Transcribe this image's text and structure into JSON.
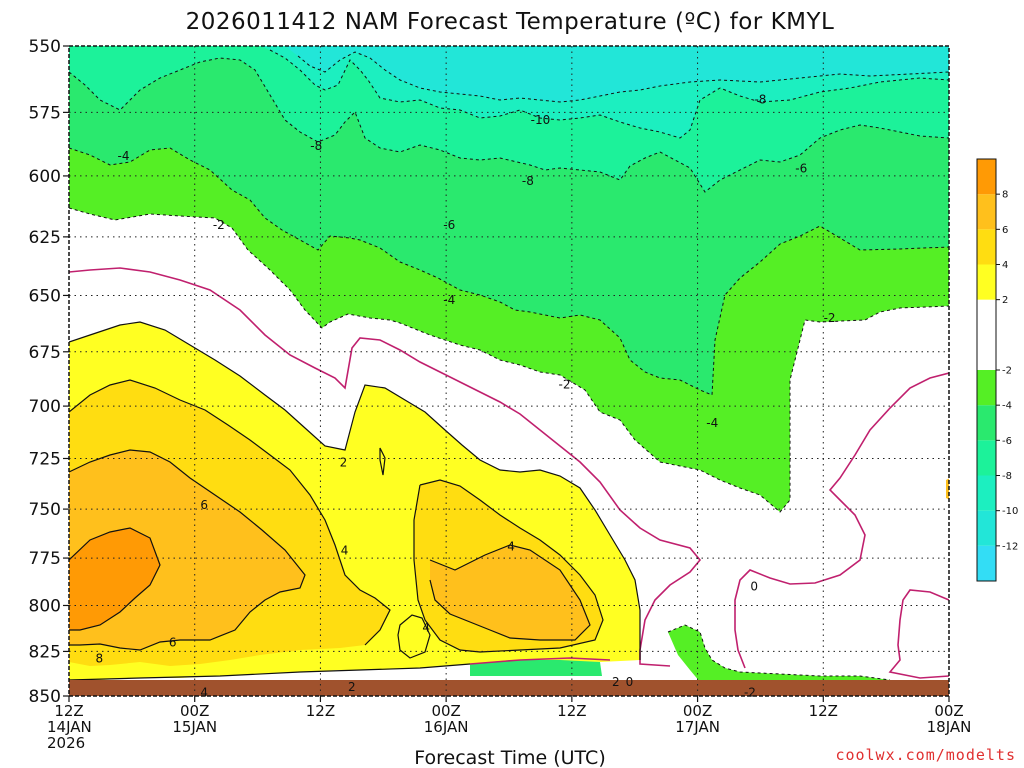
{
  "chart_data": {
    "type": "heatmap",
    "title": "2026011412 NAM Forecast Temperature (ºC) for KMYL",
    "xlabel": "Forecast Time (UTC)",
    "ylabel": "",
    "y_axis": {
      "ticks": [
        "550",
        "575",
        "600",
        "625",
        "650",
        "675",
        "700",
        "725",
        "750",
        "775",
        "800",
        "825",
        "850"
      ],
      "values": [
        550,
        575,
        600,
        625,
        650,
        675,
        700,
        725,
        750,
        775,
        800,
        825,
        850
      ],
      "scale": "log-pressure",
      "inverted": true,
      "ylim": [
        850,
        550
      ]
    },
    "x_axis": {
      "xlim_hours": [
        0,
        84
      ],
      "ticks": [
        {
          "hour": 0,
          "line1": "12Z",
          "line2": "14JAN",
          "line3": "2026"
        },
        {
          "hour": 12,
          "line1": "00Z",
          "line2": "15JAN",
          "line3": ""
        },
        {
          "hour": 24,
          "line1": "12Z",
          "line2": "",
          "line3": ""
        },
        {
          "hour": 36,
          "line1": "00Z",
          "line2": "16JAN",
          "line3": ""
        },
        {
          "hour": 48,
          "line1": "12Z",
          "line2": "",
          "line3": ""
        },
        {
          "hour": 60,
          "line1": "00Z",
          "line2": "17JAN",
          "line3": ""
        },
        {
          "hour": 72,
          "line1": "12Z",
          "line2": "",
          "line3": ""
        },
        {
          "hour": 84,
          "line1": "00Z",
          "line2": "18JAN",
          "line3": ""
        }
      ]
    },
    "grid": true,
    "colorbar": {
      "placement": "right",
      "bins": [
        {
          "lo": -14,
          "hi": -12,
          "color": "#33ddf5"
        },
        {
          "lo": -12,
          "hi": -10,
          "color": "#22e6d8"
        },
        {
          "lo": -10,
          "hi": -8,
          "color": "#1cefc0"
        },
        {
          "lo": -8,
          "hi": -6,
          "color": "#1cf29a"
        },
        {
          "lo": -6,
          "hi": -4,
          "color": "#2ae96e"
        },
        {
          "lo": -4,
          "hi": -2,
          "color": "#55ef25"
        },
        {
          "lo": -2,
          "hi": 2,
          "color": "#ffffff"
        },
        {
          "lo": 2,
          "hi": 4,
          "color": "#ffff22"
        },
        {
          "lo": 4,
          "hi": 6,
          "color": "#ffdd11"
        },
        {
          "lo": 6,
          "hi": 8,
          "color": "#ffc01c"
        },
        {
          "lo": 8,
          "hi": 10,
          "color": "#ff9a05"
        }
      ],
      "tick_labels": [
        "8",
        "6",
        "4",
        "2",
        "-2",
        "-4",
        "-6",
        "-8",
        "-10",
        "-12"
      ],
      "tick_values": [
        8,
        6,
        4,
        2,
        -2,
        -4,
        -6,
        -8,
        -10,
        -12
      ]
    },
    "contour_labels": [
      {
        "text": "-4",
        "hour": 5.2,
        "p": 592
      },
      {
        "text": "-2",
        "hour": 14.3,
        "p": 620
      },
      {
        "text": "-8",
        "hour": 23.6,
        "p": 588
      },
      {
        "text": "-6",
        "hour": 36.3,
        "p": 620
      },
      {
        "text": "-4",
        "hour": 36.3,
        "p": 652
      },
      {
        "text": "-10",
        "hour": 45.0,
        "p": 578
      },
      {
        "text": "-8",
        "hour": 43.8,
        "p": 602
      },
      {
        "text": "-2",
        "hour": 47.3,
        "p": 690
      },
      {
        "text": "-4",
        "hour": 61.4,
        "p": 708
      },
      {
        "text": "-8",
        "hour": 66.0,
        "p": 570
      },
      {
        "text": "-6",
        "hour": 69.9,
        "p": 597
      },
      {
        "text": "-2",
        "hour": 72.6,
        "p": 660
      },
      {
        "text": "2",
        "hour": 26.2,
        "p": 727
      },
      {
        "text": "6",
        "hour": 12.9,
        "p": 748
      },
      {
        "text": "4",
        "hour": 26.3,
        "p": 771
      },
      {
        "text": "4",
        "hour": 42.2,
        "p": 769
      },
      {
        "text": "4",
        "hour": 34.1,
        "p": 812
      },
      {
        "text": "6",
        "hour": 9.9,
        "p": 820
      },
      {
        "text": "8",
        "hour": 2.9,
        "p": 829
      },
      {
        "text": "4",
        "hour": 12.9,
        "p": 848
      },
      {
        "text": "2",
        "hour": 27.0,
        "p": 845
      },
      {
        "text": "2",
        "hour": 52.2,
        "p": 842
      },
      {
        "text": "0",
        "hour": 53.5,
        "p": 842
      },
      {
        "text": "0",
        "hour": 65.4,
        "p": 790
      },
      {
        "text": "-2",
        "hour": 65.0,
        "p": 848
      }
    ],
    "annotations": []
  },
  "watermark": "coolwx.com/modelts",
  "colors": {
    "contour_zero": "#c0206e",
    "contour": "#111111",
    "ground": "#a0522d",
    "watermark": "#e03030"
  }
}
